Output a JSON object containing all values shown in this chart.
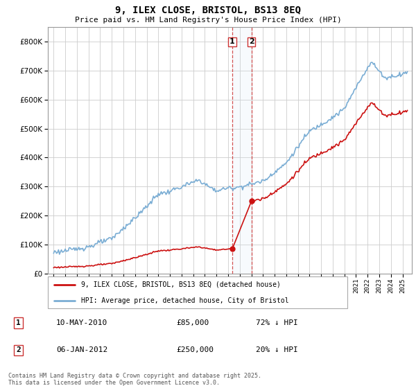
{
  "title": "9, ILEX CLOSE, BRISTOL, BS13 8EQ",
  "subtitle": "Price paid vs. HM Land Registry's House Price Index (HPI)",
  "hpi_color": "#7aadd4",
  "property_color": "#cc1111",
  "dashed_color": "#cc3333",
  "shaded_color": "#d8e8f5",
  "legend_property": "9, ILEX CLOSE, BRISTOL, BS13 8EQ (detached house)",
  "legend_hpi": "HPI: Average price, detached house, City of Bristol",
  "transaction1_date": "10-MAY-2010",
  "transaction1_price": 85000,
  "transaction1_label": "72% ↓ HPI",
  "transaction1_x": 2010.36,
  "transaction2_date": "06-JAN-2012",
  "transaction2_price": 250000,
  "transaction2_label": "20% ↓ HPI",
  "transaction2_x": 2012.01,
  "footnote": "Contains HM Land Registry data © Crown copyright and database right 2025.\nThis data is licensed under the Open Government Licence v3.0.",
  "ylim_max": 850000,
  "xlim_min": 1994.5,
  "xlim_max": 2025.8
}
